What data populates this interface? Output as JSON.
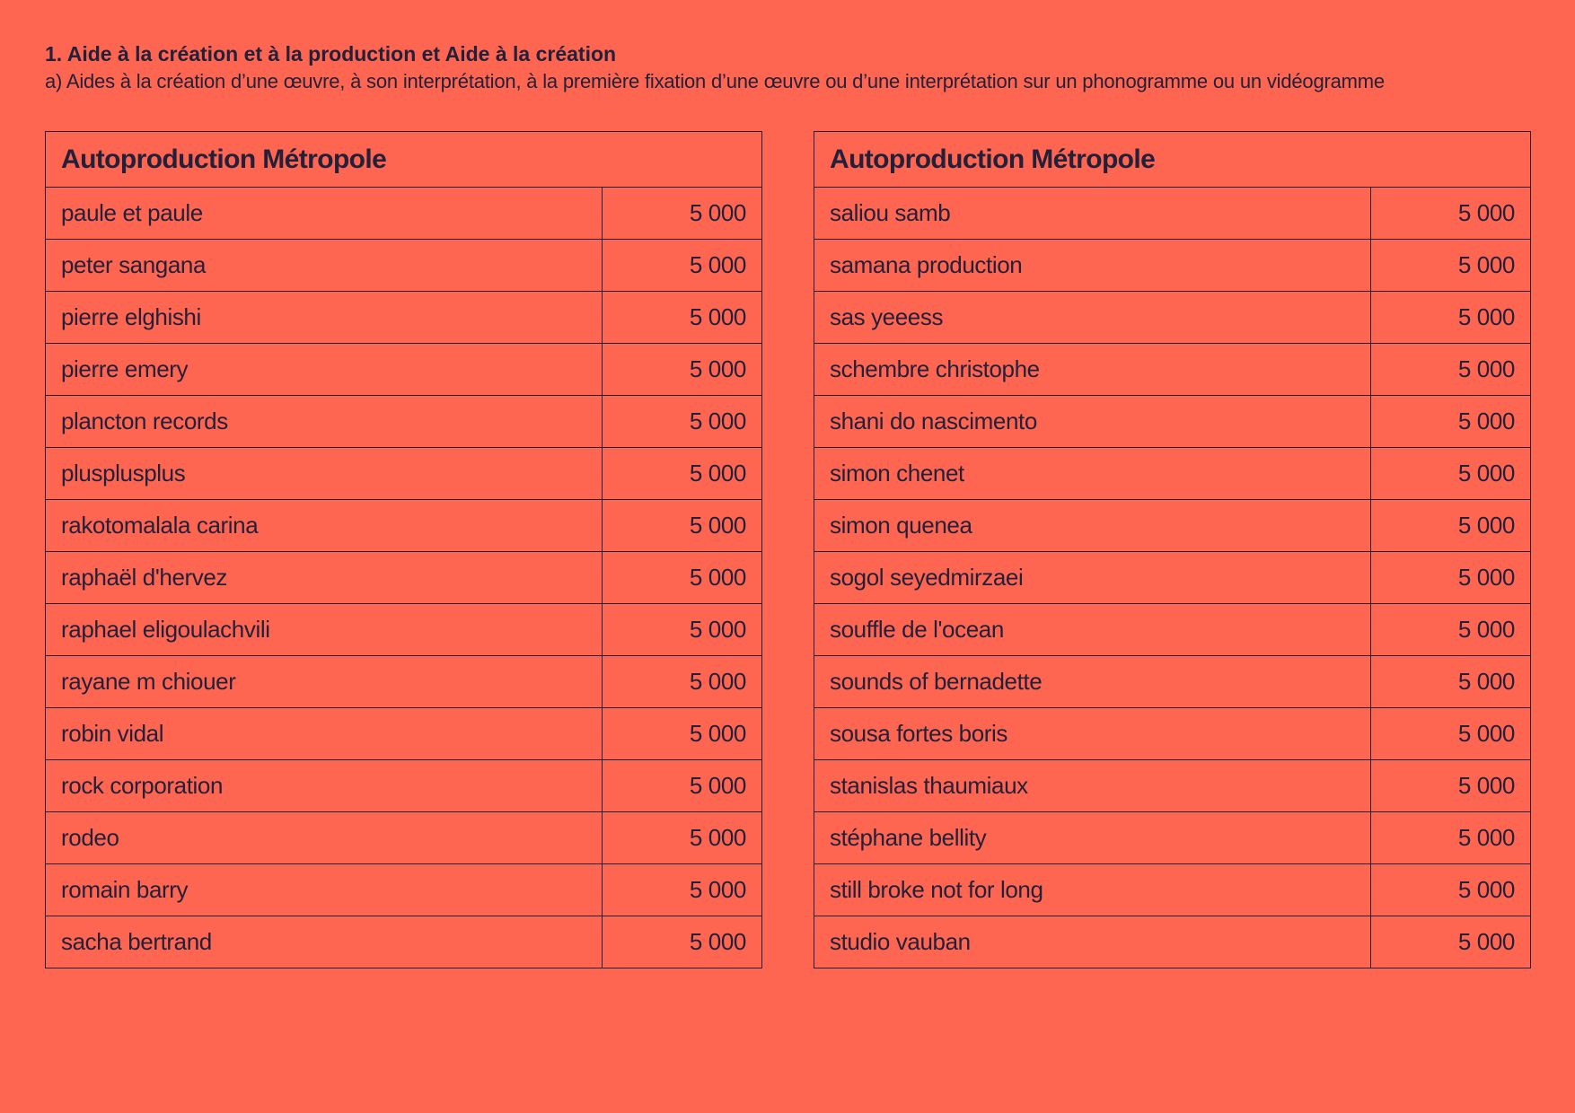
{
  "header": {
    "title": "1. Aide à la création et à la production et Aide à la création",
    "subtitle": "a) Aides à la création d’une œuvre, à son interprétation, à la première fixation d’une œuvre ou d’une interprétation sur un phonogramme ou un vidéogramme"
  },
  "tables": [
    {
      "title": "Autoproduction Métropole",
      "rows": [
        {
          "name": "paule et paule",
          "amount": "5 000"
        },
        {
          "name": "peter sangana",
          "amount": "5 000"
        },
        {
          "name": "pierre elghishi",
          "amount": "5 000"
        },
        {
          "name": "pierre emery",
          "amount": "5 000"
        },
        {
          "name": "plancton records",
          "amount": "5 000"
        },
        {
          "name": "plusplusplus",
          "amount": "5 000"
        },
        {
          "name": "rakotomalala carina",
          "amount": "5 000"
        },
        {
          "name": "raphaël d'hervez",
          "amount": "5 000"
        },
        {
          "name": "raphael eligoulachvili",
          "amount": "5 000"
        },
        {
          "name": "rayane m chiouer",
          "amount": "5 000"
        },
        {
          "name": "robin vidal",
          "amount": "5 000"
        },
        {
          "name": "rock corporation",
          "amount": "5 000"
        },
        {
          "name": "rodeo",
          "amount": "5 000"
        },
        {
          "name": "romain barry",
          "amount": "5 000"
        },
        {
          "name": "sacha bertrand",
          "amount": "5 000"
        }
      ]
    },
    {
      "title": "Autoproduction Métropole",
      "rows": [
        {
          "name": "saliou samb",
          "amount": "5 000"
        },
        {
          "name": "samana production",
          "amount": "5 000"
        },
        {
          "name": "sas yeeess",
          "amount": "5 000"
        },
        {
          "name": "schembre christophe",
          "amount": "5 000"
        },
        {
          "name": "shani do nascimento",
          "amount": "5 000"
        },
        {
          "name": "simon chenet",
          "amount": "5 000"
        },
        {
          "name": "simon quenea",
          "amount": "5 000"
        },
        {
          "name": "sogol seyedmirzaei",
          "amount": "5 000"
        },
        {
          "name": "souffle de l'ocean",
          "amount": "5 000"
        },
        {
          "name": "sounds of bernadette",
          "amount": "5 000"
        },
        {
          "name": "sousa fortes boris",
          "amount": "5 000"
        },
        {
          "name": "stanislas thaumiaux",
          "amount": "5 000"
        },
        {
          "name": "stéphane bellity",
          "amount": "5 000"
        },
        {
          "name": "still broke not for long",
          "amount": "5 000"
        },
        {
          "name": "studio vauban",
          "amount": "5 000"
        }
      ]
    }
  ]
}
